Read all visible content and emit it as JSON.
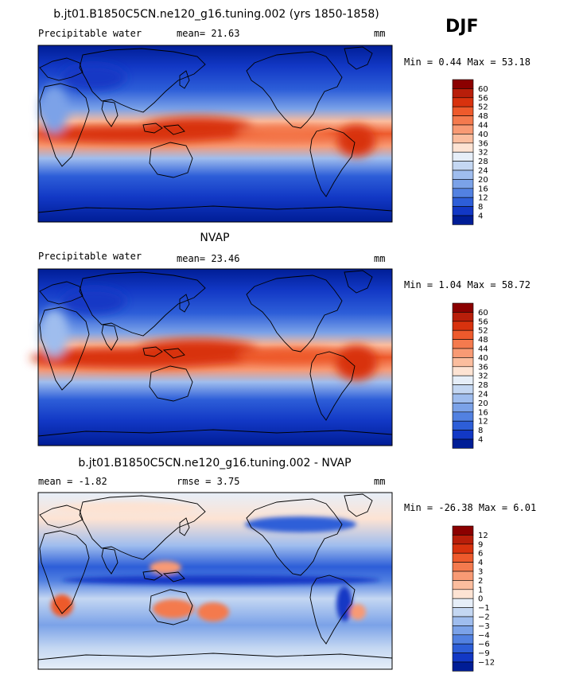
{
  "season": "DJF",
  "panels": [
    {
      "title": "b.jt01.B1850C5CN.ne120_g16.tuning.002 (yrs 1850-1858)",
      "left_label": "Precipitable water",
      "center_label": "mean=  21.63",
      "units": "mm",
      "minmax": "Min =   0.44 Max =  53.18",
      "kind": "abs",
      "colorbar": {
        "labels": [
          "60",
          "56",
          "52",
          "48",
          "44",
          "40",
          "36",
          "32",
          "28",
          "24",
          "20",
          "16",
          "12",
          "8",
          "4"
        ],
        "colors": [
          "#8b0000",
          "#b81e0a",
          "#d8320e",
          "#ee5a2c",
          "#f47a4e",
          "#f89a74",
          "#fbbd9e",
          "#fde3d3",
          "#e6eef8",
          "#c4d7f2",
          "#9fbdee",
          "#7ba2e8",
          "#5281e1",
          "#2d5ed8",
          "#1238c5",
          "#001d96"
        ]
      }
    },
    {
      "title": "NVAP",
      "left_label": "Precipitable water",
      "center_label": "mean=  23.46",
      "units": "mm",
      "minmax": "Min =   1.04 Max =  58.72",
      "kind": "abs",
      "colorbar": {
        "labels": [
          "60",
          "56",
          "52",
          "48",
          "44",
          "40",
          "36",
          "32",
          "28",
          "24",
          "20",
          "16",
          "12",
          "8",
          "4"
        ],
        "colors": [
          "#8b0000",
          "#b81e0a",
          "#d8320e",
          "#ee5a2c",
          "#f47a4e",
          "#f89a74",
          "#fbbd9e",
          "#fde3d3",
          "#e6eef8",
          "#c4d7f2",
          "#9fbdee",
          "#7ba2e8",
          "#5281e1",
          "#2d5ed8",
          "#1238c5",
          "#001d96"
        ]
      }
    },
    {
      "title": "b.jt01.B1850C5CN.ne120_g16.tuning.002 - NVAP",
      "left_label": "mean =   -1.82",
      "center_label": "rmse =   3.75",
      "units": "mm",
      "minmax": "Min = -26.38 Max =   6.01",
      "kind": "diff",
      "colorbar": {
        "labels": [
          "12",
          "9",
          "6",
          "4",
          "3",
          "2",
          "1",
          "0",
          "-1",
          "-2",
          "-3",
          "-4",
          "-6",
          "-9",
          "-12"
        ],
        "colors": [
          "#8b0000",
          "#b81e0a",
          "#d8320e",
          "#ee5a2c",
          "#f47a4e",
          "#f89a74",
          "#fbbd9e",
          "#fde3d3",
          "#e6eef8",
          "#c4d7f2",
          "#9fbdee",
          "#7ba2e8",
          "#5281e1",
          "#2d5ed8",
          "#1238c5",
          "#001d96"
        ]
      }
    }
  ]
}
